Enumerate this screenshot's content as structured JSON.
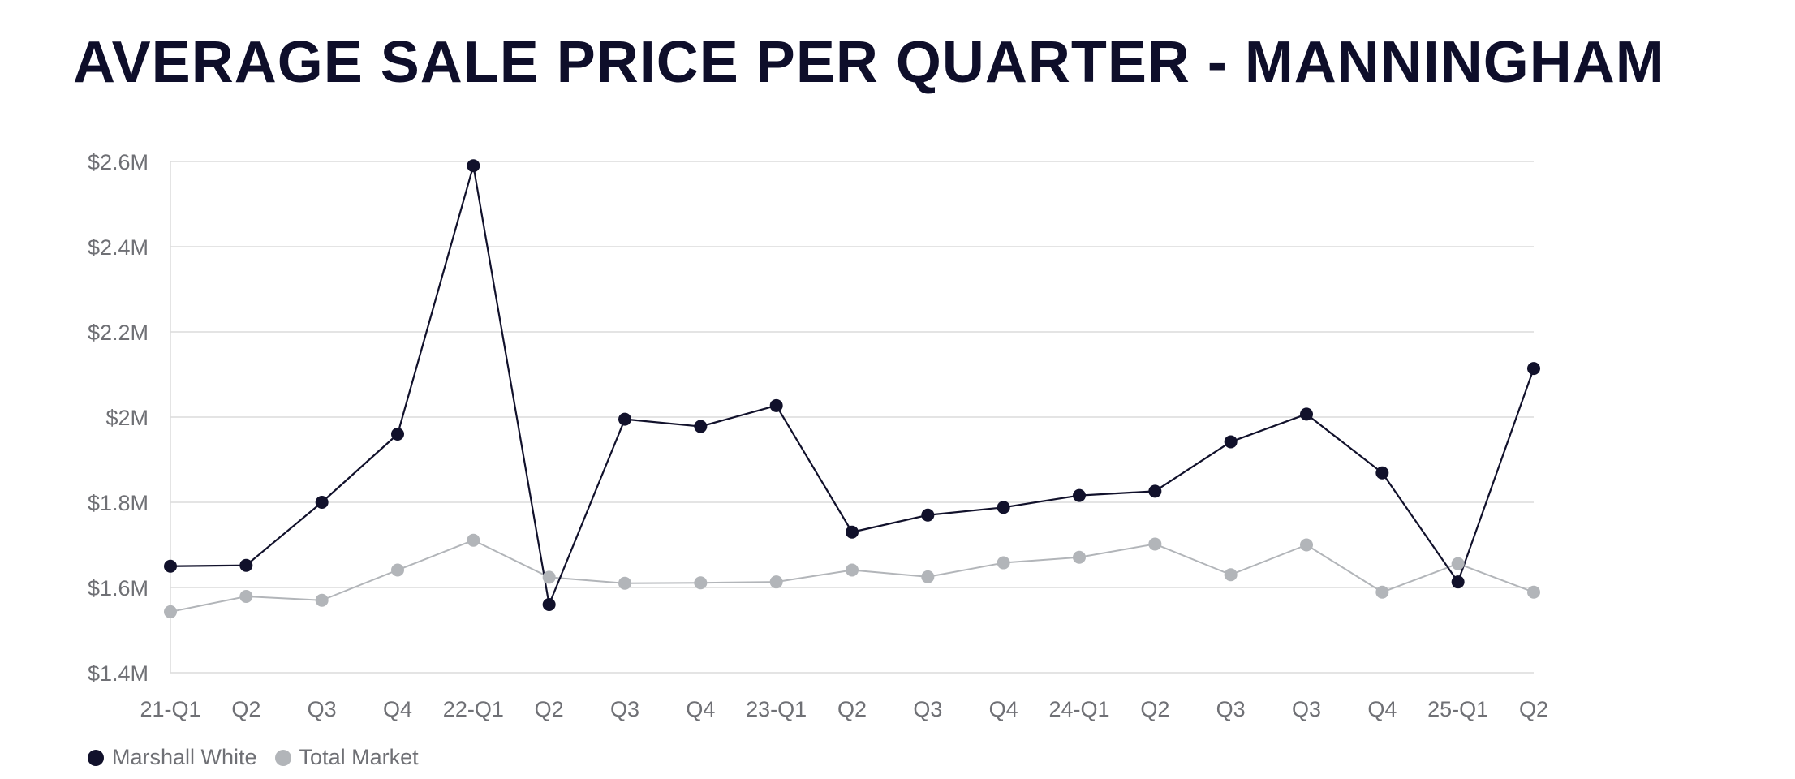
{
  "title": "AVERAGE SALE PRICE PER QUARTER - MANNINGHAM",
  "colors": {
    "marshall_white": "#11112b",
    "total_market": "#b2b5b9",
    "grid": "#dcdcdc",
    "axis_text": "#6f7075"
  },
  "legend": {
    "series_1": "Marshall White",
    "series_2": "Total Market"
  },
  "chart_data": {
    "type": "line",
    "title": "AVERAGE SALE PRICE PER QUARTER - MANNINGHAM",
    "xlabel": "",
    "ylabel": "",
    "categories": [
      "21-Q1",
      "Q2",
      "Q3",
      "Q4",
      "22-Q1",
      "Q2",
      "Q3",
      "Q4",
      "23-Q1",
      "Q2",
      "Q3",
      "Q4",
      "24-Q1",
      "Q2",
      "Q3",
      "Q3",
      "Q4",
      "25-Q1",
      "Q2"
    ],
    "ylim": [
      1.4,
      2.6
    ],
    "yticks": [
      1.4,
      1.6,
      1.8,
      2.0,
      2.2,
      2.4,
      2.6
    ],
    "ytick_labels": [
      "$1.4M",
      "$1.6M",
      "$1.8M",
      "$2M",
      "$2.2M",
      "$2.4M",
      "$2.6M"
    ],
    "grid": true,
    "legend_position": "bottom-left",
    "series": [
      {
        "name": "Marshall White",
        "values": [
          1.65,
          1.652,
          1.8,
          1.96,
          2.59,
          1.56,
          1.995,
          1.978,
          2.027,
          1.73,
          1.77,
          1.788,
          1.816,
          1.826,
          1.942,
          2.007,
          1.869,
          1.613,
          2.114
        ]
      },
      {
        "name": "Total Market",
        "values": [
          1.543,
          1.579,
          1.57,
          1.641,
          1.711,
          1.624,
          1.61,
          1.611,
          1.613,
          1.641,
          1.625,
          1.658,
          1.671,
          1.702,
          1.63,
          1.7,
          1.589,
          1.656,
          1.589
        ]
      }
    ]
  }
}
